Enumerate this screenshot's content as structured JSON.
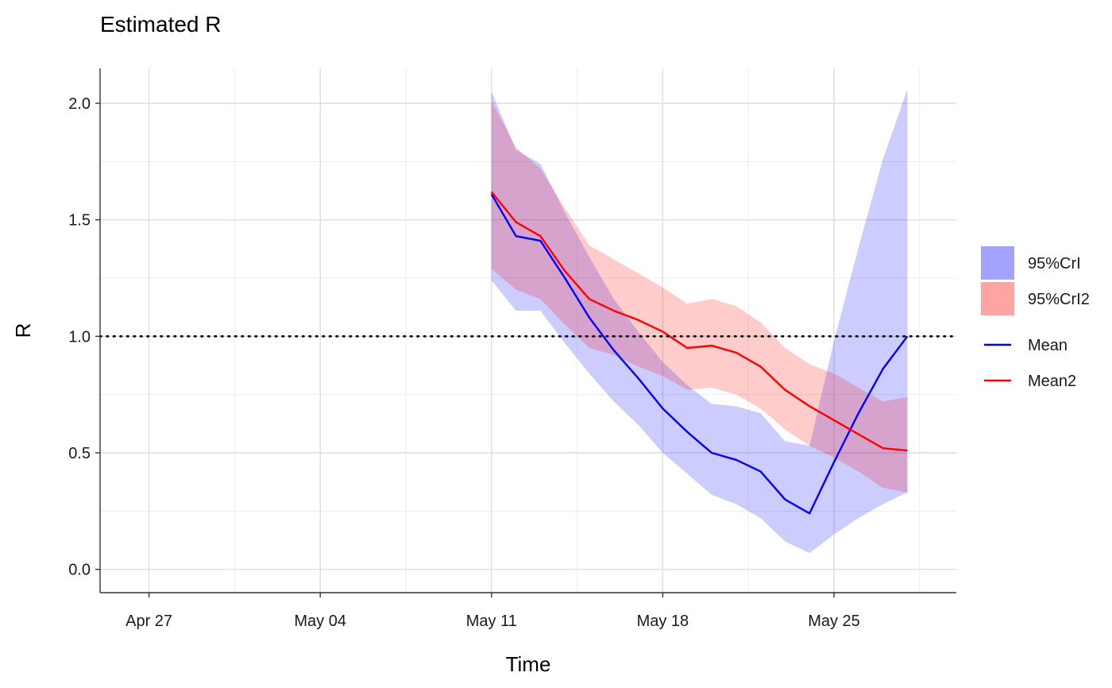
{
  "chart_data": {
    "type": "area",
    "title": "Estimated R",
    "xlabel": "Time",
    "ylabel": "R",
    "x_ticks": [
      {
        "date": "2020-04-27",
        "label": "Apr 27"
      },
      {
        "date": "2020-05-04",
        "label": "May 04"
      },
      {
        "date": "2020-05-11",
        "label": "May 11"
      },
      {
        "date": "2020-05-18",
        "label": "May 18"
      },
      {
        "date": "2020-05-25",
        "label": "May 25"
      }
    ],
    "y_ticks": [
      "0.0",
      "0.5",
      "1.0",
      "1.5",
      "2.0"
    ],
    "xlim": [
      "2020-04-25",
      "2020-05-30"
    ],
    "ylim": [
      -0.1,
      2.15
    ],
    "grid": true,
    "reference_line": {
      "y": 1.0,
      "style": "dotted",
      "color": "#000000"
    },
    "x": [
      "2020-05-11",
      "2020-05-12",
      "2020-05-13",
      "2020-05-14",
      "2020-05-15",
      "2020-05-16",
      "2020-05-17",
      "2020-05-18",
      "2020-05-19",
      "2020-05-20",
      "2020-05-21",
      "2020-05-22",
      "2020-05-23",
      "2020-05-24",
      "2020-05-25",
      "2020-05-26",
      "2020-05-27",
      "2020-05-28"
    ],
    "bands": [
      {
        "name": "95%CrI",
        "color": "#0000ff",
        "opacity": 0.2,
        "lower": [
          1.24,
          1.11,
          1.11,
          0.97,
          0.84,
          0.72,
          0.62,
          0.5,
          0.41,
          0.32,
          0.28,
          0.22,
          0.12,
          0.07,
          0.15,
          0.22,
          0.28,
          0.33
        ],
        "upper": [
          2.05,
          1.8,
          1.74,
          1.53,
          1.34,
          1.16,
          1.02,
          0.89,
          0.79,
          0.71,
          0.7,
          0.67,
          0.55,
          0.53,
          0.98,
          1.38,
          1.76,
          2.06
        ]
      },
      {
        "name": "95%CrI2",
        "color": "#ff0000",
        "opacity": 0.2,
        "lower": [
          1.29,
          1.2,
          1.16,
          1.05,
          0.95,
          0.92,
          0.87,
          0.83,
          0.77,
          0.78,
          0.75,
          0.69,
          0.6,
          0.53,
          0.48,
          0.42,
          0.35,
          0.33
        ],
        "upper": [
          2.01,
          1.81,
          1.72,
          1.55,
          1.39,
          1.33,
          1.27,
          1.21,
          1.14,
          1.16,
          1.13,
          1.06,
          0.95,
          0.88,
          0.84,
          0.78,
          0.72,
          0.74
        ]
      }
    ],
    "series": [
      {
        "name": "Mean",
        "color": "#0000ff",
        "values": [
          1.61,
          1.43,
          1.41,
          1.25,
          1.08,
          0.94,
          0.82,
          0.69,
          0.59,
          0.5,
          0.47,
          0.42,
          0.3,
          0.24,
          0.46,
          0.67,
          0.86,
          1.0
        ]
      },
      {
        "name": "Mean2",
        "color": "#ff0000",
        "values": [
          1.62,
          1.49,
          1.43,
          1.28,
          1.16,
          1.11,
          1.07,
          1.02,
          0.95,
          0.96,
          0.93,
          0.87,
          0.77,
          0.7,
          0.64,
          0.58,
          0.52,
          0.51
        ]
      }
    ],
    "legend": {
      "position": "right",
      "fill_entries": [
        "95%CrI",
        "95%CrI2"
      ],
      "line_entries": [
        "Mean",
        "Mean2"
      ]
    }
  }
}
